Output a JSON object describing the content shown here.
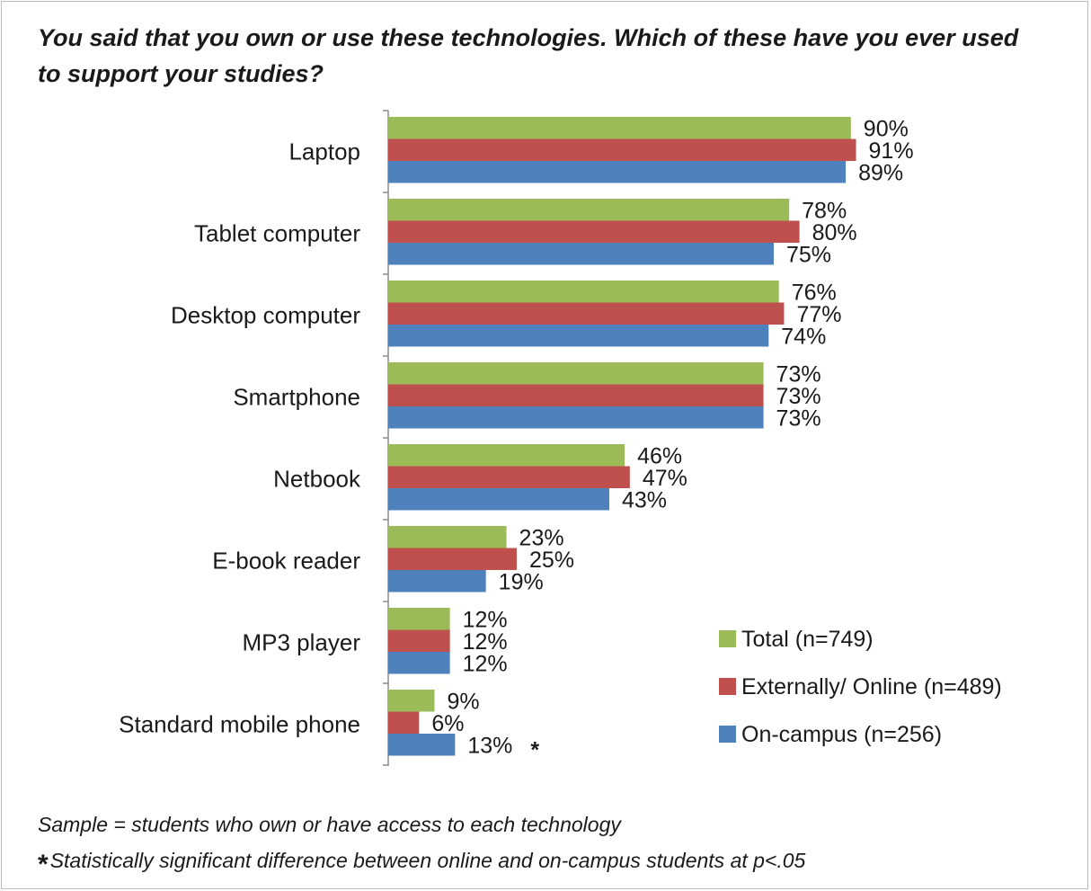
{
  "chart_data": {
    "type": "bar",
    "orientation": "horizontal",
    "title": "You said that you own or use these technologies. Which of these have you ever used to support your studies?",
    "categories": [
      "Laptop",
      "Tablet computer",
      "Desktop computer",
      "Smartphone",
      "Netbook",
      "E-book reader",
      "MP3 player",
      "Standard mobile phone"
    ],
    "series": [
      {
        "name": "Total (n=749)",
        "color": "#9bbb59",
        "values": [
          90,
          78,
          76,
          73,
          46,
          23,
          12,
          9
        ],
        "labels": [
          "90%",
          "78%",
          "76%",
          "73%",
          "46%",
          "23%",
          "12%",
          "9%"
        ]
      },
      {
        "name": "Externally/ Online (n=489)",
        "color": "#c0504d",
        "values": [
          91,
          80,
          77,
          73,
          47,
          25,
          12,
          6
        ],
        "labels": [
          "91%",
          "80%",
          "77%",
          "73%",
          "47%",
          "25%",
          "12%",
          "6%"
        ]
      },
      {
        "name": "On-campus (n=256)",
        "color": "#4f81bd",
        "values": [
          89,
          75,
          74,
          73,
          43,
          19,
          12,
          13
        ],
        "labels": [
          "89%",
          "75%",
          "74%",
          "73%",
          "43%",
          "19%",
          "12%",
          "13%"
        ]
      }
    ],
    "significance_marker": {
      "category_index": 7,
      "series_index": 2,
      "symbol": "*"
    },
    "xlim": [
      0,
      100
    ],
    "grid": false,
    "legend": "bottom-right"
  },
  "notes": {
    "sample": "Sample = students who own or have access to each technology",
    "star": "*",
    "significance": "Statistically significant difference between online and on-campus students at p<.05"
  }
}
